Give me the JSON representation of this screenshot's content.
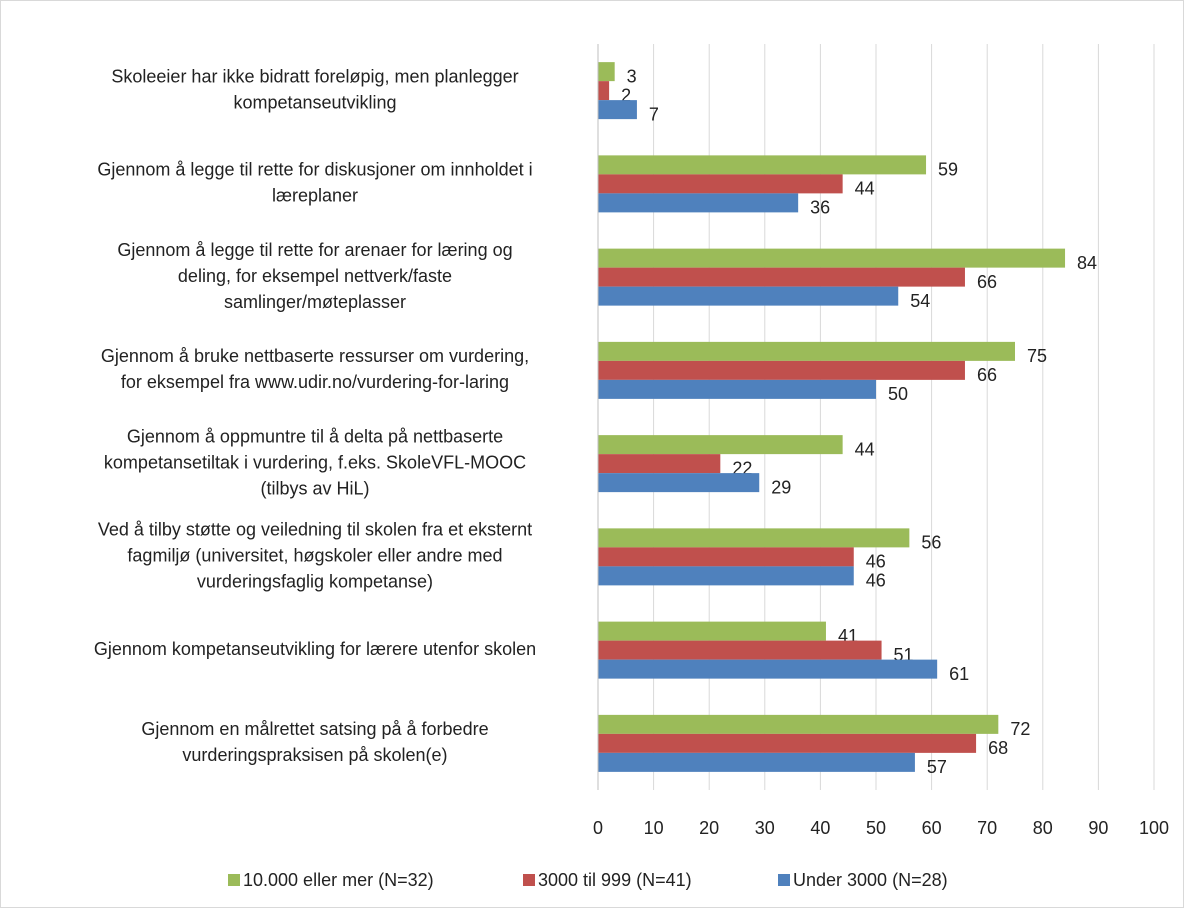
{
  "chart_data": {
    "type": "bar",
    "orientation": "horizontal",
    "categories": [
      [
        "Skoleeier har ikke bidratt foreløpig, men planlegger",
        "kompetanseutvikling"
      ],
      [
        "Gjennom å legge til rette for diskusjoner om innholdet i",
        "læreplaner"
      ],
      [
        "Gjennom å legge til rette for arenaer for læring og",
        "deling, for eksempel nettverk/faste",
        "samlinger/møteplasser"
      ],
      [
        "Gjennom å bruke nettbaserte ressurser om vurdering,",
        "for eksempel fra www.udir.no/vurdering-for-laring"
      ],
      [
        "Gjennom å oppmuntre til å delta på nettbaserte",
        "kompetansetiltak i vurdering, f.eks. SkoleVFL-MOOC",
        "(tilbys av HiL)"
      ],
      [
        "Ved å tilby støtte og veiledning til skolen fra et eksternt",
        "fagmiljø (universitet, høgskoler eller andre med",
        "vurderingsfaglig kompetanse)"
      ],
      [
        "Gjennom kompetanseutvikling for lærere utenfor skolen"
      ],
      [
        "Gjennom en målrettet satsing på å forbedre",
        "vurderingspraksisen på skolen(e)"
      ]
    ],
    "series": [
      {
        "name": "10.000 eller mer (N=32)",
        "color": "#9bbb59",
        "values": [
          3,
          59,
          84,
          75,
          44,
          56,
          41,
          72
        ]
      },
      {
        "name": "3000 til 999 (N=41)",
        "color": "#c0504d",
        "values": [
          2,
          44,
          66,
          66,
          22,
          46,
          51,
          68
        ]
      },
      {
        "name": "Under 3000 (N=28)",
        "color": "#4f81bd",
        "values": [
          7,
          36,
          54,
          50,
          29,
          46,
          61,
          57
        ]
      }
    ],
    "xlim": [
      0,
      100
    ],
    "xticks": [
      0,
      10,
      20,
      30,
      40,
      50,
      60,
      70,
      80,
      90,
      100
    ],
    "grid": true,
    "legend": "bottom"
  }
}
